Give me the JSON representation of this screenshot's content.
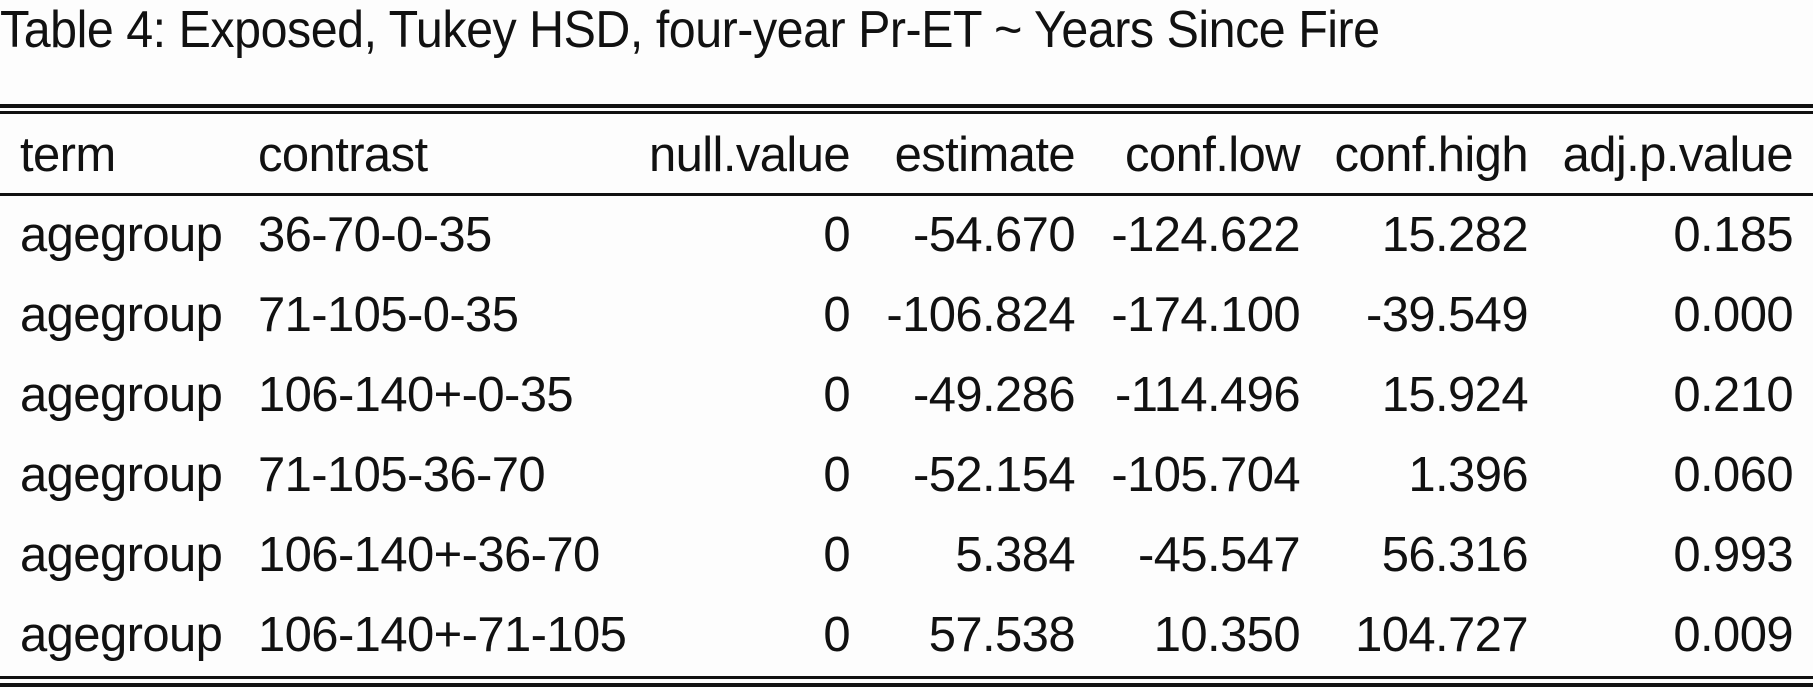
{
  "caption": "Table 4: Exposed, Tukey HSD, four-year Pr-ET ~ Years Since Fire",
  "table": {
    "headers": [
      "term",
      "contrast",
      "null.value",
      "estimate",
      "conf.low",
      "conf.high",
      "adj.p.value"
    ],
    "rows": [
      [
        "agegroup",
        "36-70-0-35",
        "0",
        "-54.670",
        "-124.622",
        "15.282",
        "0.185"
      ],
      [
        "agegroup",
        "71-105-0-35",
        "0",
        "-106.824",
        "-174.100",
        "-39.549",
        "0.000"
      ],
      [
        "agegroup",
        "106-140+-0-35",
        "0",
        "-49.286",
        "-114.496",
        "15.924",
        "0.210"
      ],
      [
        "agegroup",
        "71-105-36-70",
        "0",
        "-52.154",
        "-105.704",
        "1.396",
        "0.060"
      ],
      [
        "agegroup",
        "106-140+-36-70",
        "0",
        "5.384",
        "-45.547",
        "56.316",
        "0.993"
      ],
      [
        "agegroup",
        "106-140+-71-105",
        "0",
        "57.538",
        "10.350",
        "104.727",
        "0.009"
      ]
    ]
  }
}
